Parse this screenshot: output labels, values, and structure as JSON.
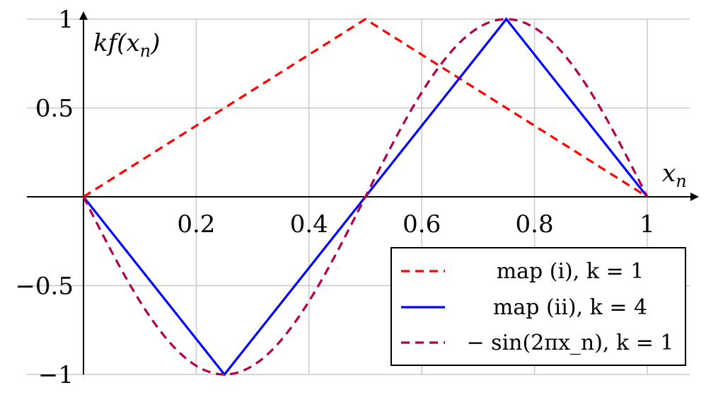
{
  "chart_data": {
    "type": "line",
    "xlabel": "x_n",
    "ylabel": "kf(x_n)",
    "xlim": [
      0,
      1.08
    ],
    "ylim": [
      -1,
      1
    ],
    "xticks": [
      0.2,
      0.4,
      0.6,
      0.8,
      1
    ],
    "xtick_labels": [
      "0.2",
      "0.4",
      "0.6",
      "0.8",
      "1"
    ],
    "yticks": [
      -1,
      -0.5,
      0.5,
      1
    ],
    "ytick_labels": [
      "−1",
      "−0.5",
      "0.5",
      "1"
    ],
    "grid": true,
    "legend_position": "bottom-right",
    "series": [
      {
        "name": "map (i), k = 1",
        "style": "dashed",
        "color": "#ff0000",
        "x": [
          0,
          0.5,
          1
        ],
        "y": [
          0,
          1,
          0
        ]
      },
      {
        "name": "map (ii), k = 4",
        "style": "solid",
        "color": "#0000ff",
        "x": [
          0,
          0.25,
          0.5,
          0.75,
          1
        ],
        "y": [
          0,
          -1,
          0,
          1,
          0
        ]
      },
      {
        "name": "− sin(2πx_n), k = 1",
        "style": "dashed",
        "color": "#b0004a",
        "function": "-sin(2*pi*x)",
        "domain": [
          0,
          1
        ]
      }
    ]
  },
  "labels": {
    "xlabel_main": "x",
    "xlabel_sub": "n",
    "ylabel_prefix": "kf(x",
    "ylabel_sub": "n",
    "ylabel_suffix": ")"
  }
}
